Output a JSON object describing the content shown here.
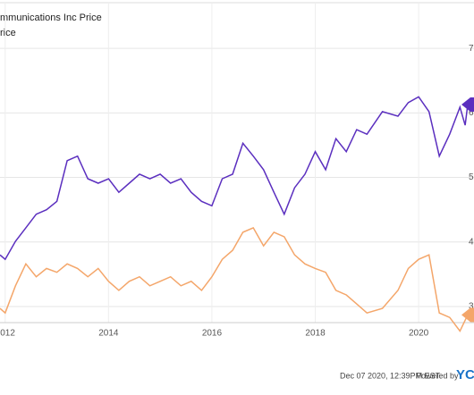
{
  "chart_data": {
    "type": "line",
    "legend": [
      "mmunications Inc Price",
      "rice"
    ],
    "xlim": [
      2011.9,
      2020.95
    ],
    "xticks": [
      2012,
      2014,
      2016,
      2018,
      2020
    ],
    "ylim": [
      2.75,
      7.75
    ],
    "yticks": [
      3,
      4,
      5,
      6,
      7
    ],
    "grid": true,
    "series": [
      {
        "color": "#5b2fbf",
        "x": [
          2011.9,
          2012.0,
          2012.2,
          2012.4,
          2012.6,
          2012.8,
          2013.0,
          2013.2,
          2013.4,
          2013.6,
          2013.8,
          2014.0,
          2014.2,
          2014.4,
          2014.6,
          2014.8,
          2015.0,
          2015.2,
          2015.4,
          2015.6,
          2015.8,
          2016.0,
          2016.2,
          2016.4,
          2016.6,
          2016.8,
          2017.0,
          2017.2,
          2017.4,
          2017.6,
          2017.8,
          2018.0,
          2018.2,
          2018.4,
          2018.6,
          2018.8,
          2019.0,
          2019.3,
          2019.6,
          2019.8,
          2020.0,
          2020.2,
          2020.4,
          2020.6,
          2020.8,
          2020.9,
          2020.95
        ],
        "values": [
          3.8,
          3.73,
          4.01,
          4.22,
          4.43,
          4.5,
          4.63,
          5.26,
          5.33,
          4.98,
          4.91,
          4.98,
          4.77,
          4.91,
          5.05,
          4.98,
          5.05,
          4.91,
          4.98,
          4.77,
          4.63,
          4.56,
          4.98,
          5.05,
          5.53,
          5.33,
          5.12,
          4.77,
          4.43,
          4.84,
          5.05,
          5.4,
          5.12,
          5.6,
          5.4,
          5.74,
          5.67,
          6.02,
          5.95,
          6.16,
          6.25,
          6.02,
          5.33,
          5.67,
          6.09,
          5.81,
          6.13
        ]
      },
      {
        "color": "#f4a66a",
        "x": [
          2011.9,
          2012.0,
          2012.2,
          2012.4,
          2012.6,
          2012.8,
          2013.0,
          2013.2,
          2013.4,
          2013.6,
          2013.8,
          2014.0,
          2014.2,
          2014.4,
          2014.6,
          2014.8,
          2015.0,
          2015.2,
          2015.4,
          2015.6,
          2015.8,
          2016.0,
          2016.2,
          2016.4,
          2016.6,
          2016.8,
          2017.0,
          2017.2,
          2017.4,
          2017.6,
          2017.8,
          2018.0,
          2018.2,
          2018.4,
          2018.6,
          2018.8,
          2019.0,
          2019.3,
          2019.6,
          2019.8,
          2020.0,
          2020.2,
          2020.4,
          2020.6,
          2020.8,
          2020.95
        ],
        "values": [
          2.97,
          2.9,
          3.32,
          3.66,
          3.46,
          3.59,
          3.53,
          3.66,
          3.59,
          3.46,
          3.59,
          3.39,
          3.25,
          3.39,
          3.46,
          3.32,
          3.39,
          3.46,
          3.32,
          3.39,
          3.25,
          3.46,
          3.73,
          3.87,
          4.15,
          4.22,
          3.94,
          4.15,
          4.08,
          3.8,
          3.66,
          3.59,
          3.53,
          3.25,
          3.18,
          3.04,
          2.9,
          2.97,
          3.25,
          3.59,
          3.73,
          3.8,
          2.9,
          2.83,
          2.62,
          2.87
        ]
      }
    ],
    "timestamp": "Dec 07 2020, 12:39PM EST.",
    "powered_by": "Powered by",
    "logo": "YC"
  }
}
